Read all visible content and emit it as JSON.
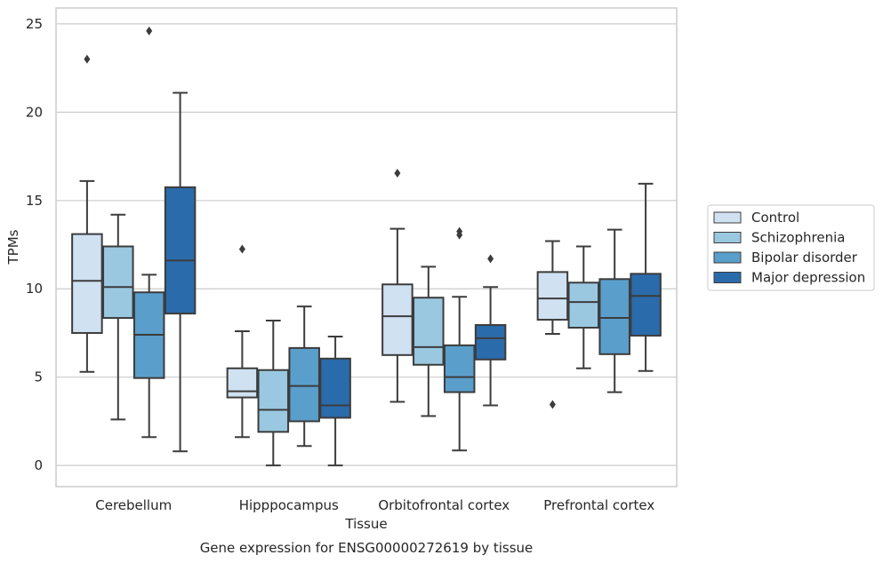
{
  "chart_data": {
    "type": "box",
    "title": "",
    "caption": "Gene expression for ENSG00000272619 by tissue",
    "xlabel": "Tissue",
    "ylabel": "TPMs",
    "ylim": [
      -1.2,
      25.9
    ],
    "yticks": [
      0,
      5,
      10,
      15,
      20,
      25
    ],
    "grid": "horizontal",
    "legend_position": "right",
    "categories": [
      "Cerebellum",
      "Hipppocampus",
      "Orbitofrontal cortex",
      "Prefrontal cortex"
    ],
    "series": [
      {
        "name": "Control",
        "color": "#d0e1f2",
        "boxes": [
          {
            "whisker_low": 5.3,
            "q1": 7.5,
            "median": 10.45,
            "q3": 13.1,
            "whisker_high": 16.1,
            "outliers": [
              23.0
            ]
          },
          {
            "whisker_low": 1.6,
            "q1": 3.85,
            "median": 4.2,
            "q3": 5.5,
            "whisker_high": 7.6,
            "outliers": [
              12.25
            ]
          },
          {
            "whisker_low": 3.6,
            "q1": 6.25,
            "median": 8.45,
            "q3": 10.25,
            "whisker_high": 13.4,
            "outliers": [
              16.55
            ]
          },
          {
            "whisker_low": 7.45,
            "q1": 8.25,
            "median": 9.45,
            "q3": 10.95,
            "whisker_high": 12.7,
            "outliers": [
              3.45
            ]
          }
        ]
      },
      {
        "name": "Schizophrenia",
        "color": "#9ac8e0",
        "boxes": [
          {
            "whisker_low": 2.6,
            "q1": 8.35,
            "median": 10.1,
            "q3": 12.4,
            "whisker_high": 14.2,
            "outliers": []
          },
          {
            "whisker_low": 0.0,
            "q1": 1.9,
            "median": 3.15,
            "q3": 5.4,
            "whisker_high": 8.2,
            "outliers": []
          },
          {
            "whisker_low": 2.8,
            "q1": 5.7,
            "median": 6.7,
            "q3": 9.5,
            "whisker_high": 11.25,
            "outliers": []
          },
          {
            "whisker_low": 5.5,
            "q1": 7.8,
            "median": 9.25,
            "q3": 10.35,
            "whisker_high": 12.4,
            "outliers": []
          }
        ]
      },
      {
        "name": "Bipolar disorder",
        "color": "#5a9ecb",
        "boxes": [
          {
            "whisker_low": 1.6,
            "q1": 4.95,
            "median": 7.4,
            "q3": 9.8,
            "whisker_high": 10.8,
            "outliers": [
              24.6
            ]
          },
          {
            "whisker_low": 1.1,
            "q1": 2.5,
            "median": 4.5,
            "q3": 6.65,
            "whisker_high": 9.0,
            "outliers": []
          },
          {
            "whisker_low": 0.85,
            "q1": 4.15,
            "median": 5.0,
            "q3": 6.8,
            "whisker_high": 9.55,
            "outliers": [
              13.25,
              13.05
            ]
          },
          {
            "whisker_low": 4.15,
            "q1": 6.3,
            "median": 8.35,
            "q3": 10.55,
            "whisker_high": 13.35,
            "outliers": []
          }
        ]
      },
      {
        "name": "Major depression",
        "color": "#2a6bab",
        "boxes": [
          {
            "whisker_low": 0.8,
            "q1": 8.6,
            "median": 11.6,
            "q3": 15.75,
            "whisker_high": 21.1,
            "outliers": []
          },
          {
            "whisker_low": 0.0,
            "q1": 2.7,
            "median": 3.4,
            "q3": 6.05,
            "whisker_high": 7.3,
            "outliers": []
          },
          {
            "whisker_low": 3.4,
            "q1": 6.0,
            "median": 7.2,
            "q3": 7.95,
            "whisker_high": 10.1,
            "outliers": [
              11.7
            ]
          },
          {
            "whisker_low": 5.35,
            "q1": 7.35,
            "median": 9.6,
            "q3": 10.85,
            "whisker_high": 15.95,
            "outliers": []
          }
        ]
      }
    ]
  }
}
